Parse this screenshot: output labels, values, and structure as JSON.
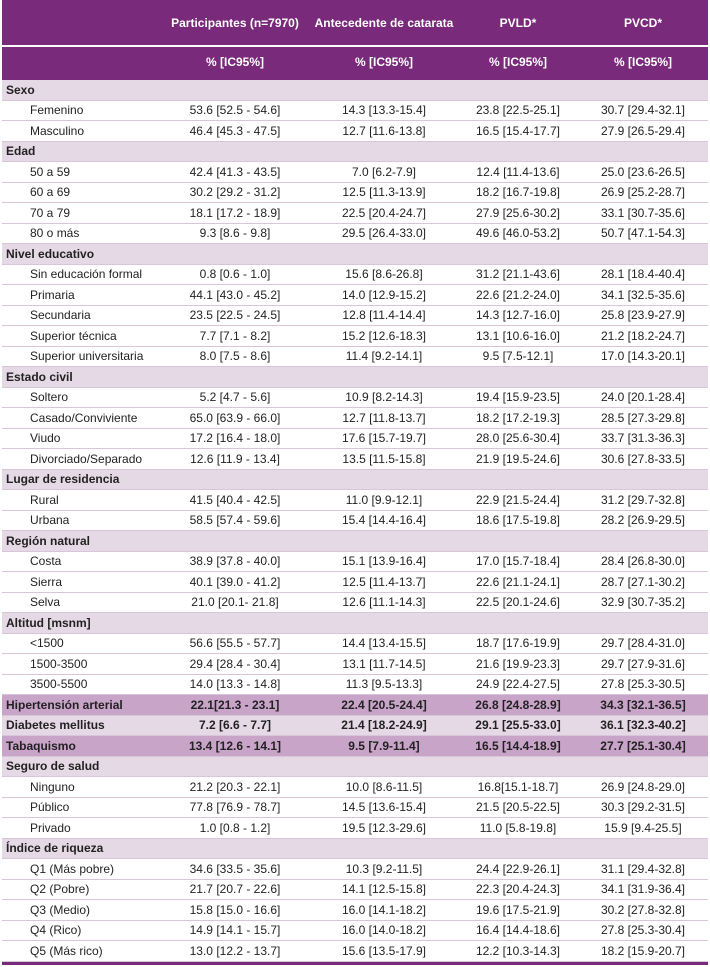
{
  "header": {
    "columns": [
      "",
      "Participantes (n=7970)",
      "Antecedente de catarata",
      "PVLD*",
      "PVCD*"
    ],
    "subheaders": [
      "",
      "% [IC95%]",
      "% [IC95%]",
      "% [IC95%]",
      "% [IC95%]"
    ]
  },
  "rows": [
    {
      "label": "Sexo",
      "type": "cat",
      "values": [
        "",
        "",
        "",
        ""
      ]
    },
    {
      "label": "Femenino",
      "type": "sub",
      "values": [
        "53.6 [52.5 - 54.6]",
        "14.3 [13.3-15.4]",
        "23.8 [22.5-25.1]",
        "30.7 [29.4-32.1]"
      ]
    },
    {
      "label": "Masculino",
      "type": "sub",
      "values": [
        "46.4 [45.3 - 47.5]",
        "12.7 [11.6-13.8]",
        "16.5 [15.4-17.7]",
        "27.9 [26.5-29.4]"
      ]
    },
    {
      "label": "Edad",
      "type": "cat",
      "values": [
        "",
        "",
        "",
        ""
      ]
    },
    {
      "label": "50 a 59",
      "type": "sub",
      "values": [
        "42.4 [41.3 - 43.5]",
        "7.0 [6.2-7.9]",
        "12.4 [11.4-13.6]",
        "25.0 [23.6-26.5]"
      ]
    },
    {
      "label": "60 a 69",
      "type": "sub",
      "values": [
        "30.2 [29.2 - 31.2]",
        "12.5 [11.3-13.9]",
        "18.2 [16.7-19.8]",
        "26.9 [25.2-28.7]"
      ]
    },
    {
      "label": "70 a 79",
      "type": "sub",
      "values": [
        "18.1 [17.2 - 18.9]",
        "22.5 [20.4-24.7]",
        "27.9 [25.6-30.2]",
        "33.1 [30.7-35.6]"
      ]
    },
    {
      "label": "80 o más",
      "type": "sub",
      "values": [
        "9.3 [8.6 - 9.8]",
        "29.5 [26.4-33.0]",
        "49.6 [46.0-53.2]",
        "50.7 [47.1-54.3]"
      ]
    },
    {
      "label": "Nivel educativo",
      "type": "cat",
      "values": [
        "",
        "",
        "",
        ""
      ]
    },
    {
      "label": "Sin educación formal",
      "type": "sub",
      "values": [
        "0.8 [0.6 - 1.0]",
        "15.6 [8.6-26.8]",
        "31.2 [21.1-43.6]",
        "28.1 [18.4-40.4]"
      ]
    },
    {
      "label": "Primaria",
      "type": "sub",
      "values": [
        "44.1 [43.0 - 45.2]",
        "14.0 [12.9-15.2]",
        "22.6 [21.2-24.0]",
        "34.1 [32.5-35.6]"
      ]
    },
    {
      "label": "Secundaria",
      "type": "sub",
      "values": [
        "23.5 [22.5 - 24.5]",
        "12.8 [11.4-14.4]",
        "14.3 [12.7-16.0]",
        "25.8 [23.9-27.9]"
      ]
    },
    {
      "label": "Superior técnica",
      "type": "sub",
      "values": [
        "7.7 [7.1 - 8.2]",
        "15.2 [12.6-18.3]",
        "13.1 [10.6-16.0]",
        "21.2 [18.2-24.7]"
      ]
    },
    {
      "label": "Superior universitaria",
      "type": "sub",
      "values": [
        "8.0 [7.5 - 8.6]",
        "11.4 [9.2-14.1]",
        "9.5 [7.5-12.1]",
        "17.0 [14.3-20.1]"
      ]
    },
    {
      "label": "Estado civil",
      "type": "cat",
      "values": [
        "",
        "",
        "",
        ""
      ]
    },
    {
      "label": "Soltero",
      "type": "sub",
      "values": [
        "5.2 [4.7 - 5.6]",
        "10.9 [8.2-14.3]",
        "19.4 [15.9-23.5]",
        "24.0 [20.1-28.4]"
      ]
    },
    {
      "label": "Casado/Conviviente",
      "type": "sub",
      "values": [
        "65.0 [63.9 - 66.0]",
        "12.7 [11.8-13.7]",
        "18.2 [17.2-19.3]",
        "28.5 [27.3-29.8]"
      ]
    },
    {
      "label": "Viudo",
      "type": "sub",
      "values": [
        "17.2 [16.4 - 18.0]",
        "17.6 [15.7-19.7]",
        "28.0 [25.6-30.4]",
        "33.7 [31.3-36.3]"
      ]
    },
    {
      "label": "Divorciado/Separado",
      "type": "sub",
      "values": [
        "12.6 [11.9 - 13.4]",
        "13.5 [11.5-15.8]",
        "21.9 [19.5-24.6]",
        "30.6 [27.8-33.5]"
      ]
    },
    {
      "label": "Lugar de residencia",
      "type": "cat",
      "values": [
        "",
        "",
        "",
        ""
      ]
    },
    {
      "label": "Rural",
      "type": "sub",
      "values": [
        "41.5 [40.4 - 42.5]",
        "11.0 [9.9-12.1]",
        "22.9 [21.5-24.4]",
        "31.2 [29.7-32.8]"
      ]
    },
    {
      "label": "Urbana",
      "type": "sub",
      "values": [
        "58.5 [57.4 - 59.6]",
        "15.4 [14.4-16.4]",
        "18.6 [17.5-19.8]",
        "28.2 [26.9-29.5]"
      ]
    },
    {
      "label": "Región natural",
      "type": "cat",
      "values": [
        "",
        "",
        "",
        ""
      ]
    },
    {
      "label": "Costa",
      "type": "sub",
      "values": [
        "38.9 [37.8 - 40.0]",
        "15.1 [13.9-16.4]",
        "17.0 [15.7-18.4]",
        "28.4 [26.8-30.0]"
      ]
    },
    {
      "label": "Sierra",
      "type": "sub",
      "values": [
        "40.1 [39.0 - 41.2]",
        "12.5 [11.4-13.7]",
        "22.6 [21.1-24.1]",
        "28.7 [27.1-30.2]"
      ]
    },
    {
      "label": "Selva",
      "type": "sub",
      "values": [
        "21.0 [20.1- 21.8]",
        "12.6 [11.1-14.3]",
        "22.5 [20.1-24.6]",
        "32.9 [30.7-35.2]"
      ]
    },
    {
      "label": "Altitud [msnm]",
      "type": "cat",
      "values": [
        "",
        "",
        "",
        ""
      ]
    },
    {
      "label": "<1500",
      "type": "sub",
      "values": [
        "56.6 [55.5 - 57.7]",
        "14.4 [13.4-15.5]",
        "18.7 [17.6-19.9]",
        "29.7 [28.4-31.0]"
      ]
    },
    {
      "label": "1500-3500",
      "type": "sub",
      "values": [
        "29.4 [28.4 - 30.4]",
        "13.1 [11.7-14.5]",
        "21.6 [19.9-23.3]",
        "29.7 [27.9-31.6]"
      ]
    },
    {
      "label": "3500-5500",
      "type": "sub",
      "values": [
        "14.0 [13.3 - 14.8]",
        "11.3 [9.5-13.3]",
        "24.9 [22.4-27.5]",
        "27.8 [25.3-30.5]"
      ]
    },
    {
      "label": "Hipertensión arterial",
      "type": "cat hl",
      "values": [
        "22.1[21.3 - 23.1]",
        "22.4 [20.5-24.4]",
        "26.8 [24.8-28.9]",
        "34.3 [32.1-36.5]"
      ]
    },
    {
      "label": "Diabetes mellitus",
      "type": "cat plain",
      "values": [
        "7.2 [6.6 - 7.7]",
        "21.4 [18.2-24.9]",
        "29.1 [25.5-33.0]",
        "36.1 [32.3-40.2]"
      ]
    },
    {
      "label": "Tabaquismo",
      "type": "cat hl",
      "values": [
        "13.4 [12.6 - 14.1]",
        "9.5 [7.9-11.4]",
        "16.5 [14.4-18.9]",
        "27.7 [25.1-30.4]"
      ]
    },
    {
      "label": "Seguro de salud",
      "type": "cat",
      "values": [
        "",
        "",
        "",
        ""
      ]
    },
    {
      "label": "Ninguno",
      "type": "sub",
      "values": [
        "21.2 [20.3 - 22.1]",
        "10.0 [8.6-11.5]",
        "16.8[15.1-18.7]",
        "26.9 [24.8-29.0]"
      ]
    },
    {
      "label": "Público",
      "type": "sub",
      "values": [
        "77.8 [76.9 - 78.7]",
        "14.5 [13.6-15.4]",
        "21.5 [20.5-22.5]",
        "30.3 [29.2-31.5]"
      ]
    },
    {
      "label": "Privado",
      "type": "sub",
      "values": [
        "1.0 [0.8 - 1.2]",
        "19.5 [12.3-29.6]",
        "11.0 [5.8-19.8]",
        "15.9 [9.4-25.5]"
      ]
    },
    {
      "label": "Índice de riqueza",
      "type": "cat",
      "values": [
        "",
        "",
        "",
        ""
      ]
    },
    {
      "label": "Q1 (Más pobre)",
      "type": "sub",
      "values": [
        "34.6 [33.5 - 35.6]",
        "10.3 [9.2-11.5]",
        "24.4 [22.9-26.1]",
        "31.1 [29.4-32.8]"
      ]
    },
    {
      "label": "Q2 (Pobre)",
      "type": "sub",
      "values": [
        "21.7 [20.7 - 22.6]",
        "14.1 [12.5-15.8]",
        "22.3 [20.4-24.3]",
        "34.1 [31.9-36.4]"
      ]
    },
    {
      "label": "Q3 (Medio)",
      "type": "sub",
      "values": [
        "15.8 [15.0 - 16.6]",
        "16.0 [14.1-18.2]",
        "19.6 [17.5-21.9]",
        "30.2 [27.8-32.8]"
      ]
    },
    {
      "label": "Q4 (Rico)",
      "type": "sub",
      "values": [
        "14.9 [14.1 - 15.7]",
        "16.0 [14.0-18.2]",
        "16.4 [14.4-18.6]",
        "27.8 [25.3-30.4]"
      ]
    },
    {
      "label": "Q5 (Más rico)",
      "type": "sub",
      "values": [
        "13.0 [12.2 - 13.7]",
        "15.6 [13.5-17.9]",
        "12.2 [10.3-14.3]",
        "18.2 [15.9-20.7]"
      ]
    }
  ]
}
